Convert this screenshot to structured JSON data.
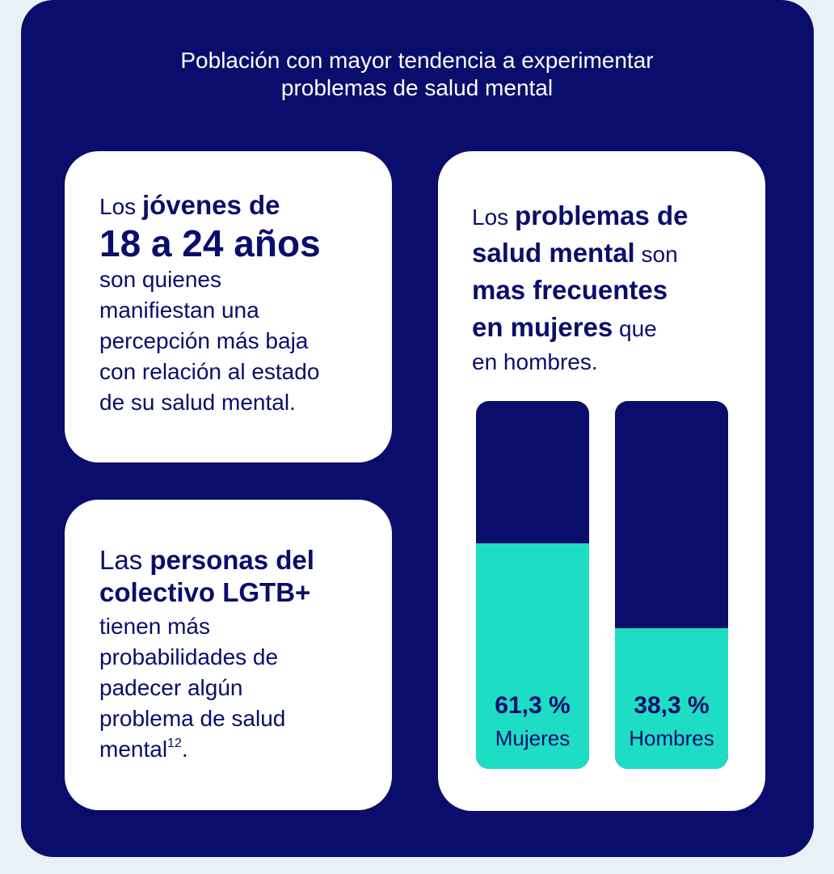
{
  "title": {
    "line1": "Población con mayor tendencia a experimentar",
    "line2": "problemas de salud mental"
  },
  "card_youth": {
    "t1": "Los ",
    "b1": "jóvenes de",
    "big": "18 a 24 años",
    "lines": [
      "son quienes",
      "manifiestan una",
      "percepción más baja",
      "con relación al estado",
      "de su salud mental."
    ]
  },
  "card_lgtb": {
    "t1": "Las ",
    "b1": "personas del",
    "b2": "colectivo LGTB+",
    "lines": [
      "tienen más",
      "probabilidades de",
      "padecer algún",
      "problema de salud"
    ],
    "last": "mental",
    "sup": "12",
    "tail": "."
  },
  "card_gender": {
    "t1": "Los ",
    "b1": "problemas de",
    "b2": "salud mental",
    "t2": " son",
    "b3": "mas frecuentes",
    "b4": "en mujeres",
    "t3": " que",
    "t4": "en hombres."
  },
  "colors": {
    "navy": "#0a0d6b",
    "teal": "#1dddc4"
  },
  "chart_data": {
    "type": "bar",
    "categories": [
      "Mujeres",
      "Hombres"
    ],
    "values": [
      61.3,
      38.3
    ],
    "value_labels": [
      "61,3 %",
      "38,3 %"
    ],
    "ylim": [
      0,
      100
    ]
  }
}
